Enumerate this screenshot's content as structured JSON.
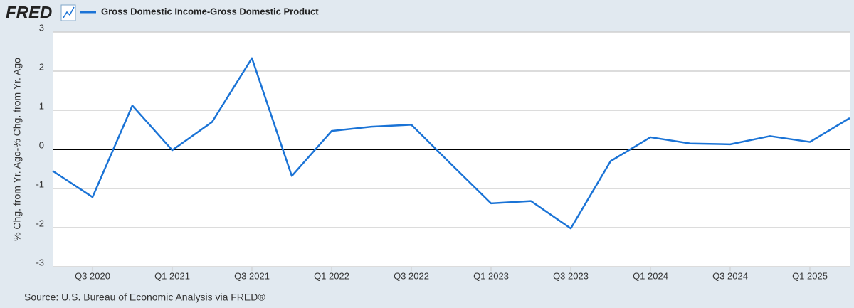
{
  "chart_data": {
    "type": "line",
    "logo": "FRED",
    "ylabel": "% Chg. from Yr. Ago-% Chg. from Yr. Ago",
    "source": "Source: U.S. Bureau of Economic Analysis via FRED®",
    "categories": [
      null,
      "Q3 2020",
      null,
      "Q1 2021",
      null,
      "Q3 2021",
      null,
      "Q1 2022",
      null,
      "Q3 2022",
      null,
      "Q1 2023",
      null,
      "Q3 2023",
      null,
      "Q1 2024",
      null,
      "Q3 2024",
      null,
      "Q1 2025",
      null
    ],
    "series": [
      {
        "name": "Gross Domestic Income-Gross Domestic Product",
        "color": "#1a73d6",
        "values": [
          -0.55,
          -1.22,
          1.12,
          -0.02,
          0.7,
          2.33,
          -0.68,
          0.47,
          0.58,
          0.63,
          -0.38,
          -1.38,
          -1.32,
          -2.02,
          -0.3,
          0.31,
          0.15,
          0.13,
          0.34,
          0.19,
          0.8
        ]
      }
    ],
    "ylim": [
      -3,
      3
    ],
    "yticks": [
      -3,
      -2,
      -1,
      0,
      1,
      2,
      3
    ],
    "grid": true
  }
}
